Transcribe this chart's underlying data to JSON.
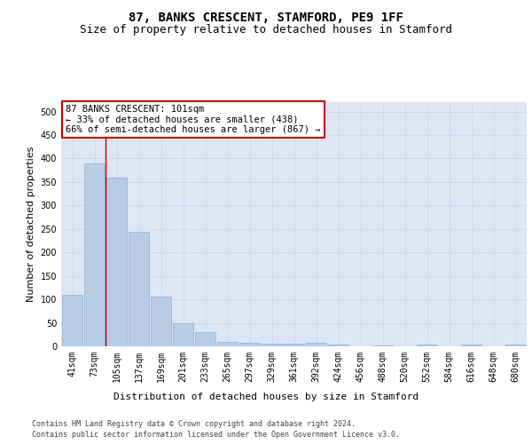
{
  "title": "87, BANKS CRESCENT, STAMFORD, PE9 1FF",
  "subtitle": "Size of property relative to detached houses in Stamford",
  "xlabel": "Distribution of detached houses by size in Stamford",
  "ylabel": "Number of detached properties",
  "categories": [
    "41sqm",
    "73sqm",
    "105sqm",
    "137sqm",
    "169sqm",
    "201sqm",
    "233sqm",
    "265sqm",
    "297sqm",
    "329sqm",
    "361sqm",
    "392sqm",
    "424sqm",
    "456sqm",
    "488sqm",
    "520sqm",
    "552sqm",
    "584sqm",
    "616sqm",
    "648sqm",
    "680sqm"
  ],
  "values": [
    110,
    390,
    360,
    243,
    105,
    50,
    30,
    10,
    8,
    5,
    5,
    8,
    3,
    0,
    2,
    0,
    3,
    0,
    4,
    0,
    3
  ],
  "bar_color": "#b8cce4",
  "bar_edge_color": "#8ab0d0",
  "vline_color": "#cc0000",
  "annotation_text": "87 BANKS CRESCENT: 101sqm\n← 33% of detached houses are smaller (438)\n66% of semi-detached houses are larger (867) →",
  "annotation_box_color": "#ffffff",
  "annotation_box_edge": "#cc0000",
  "ylim": [
    0,
    520
  ],
  "yticks": [
    0,
    50,
    100,
    150,
    200,
    250,
    300,
    350,
    400,
    450,
    500
  ],
  "grid_color": "#d0d8e8",
  "background_color": "#dce6f5",
  "footer_line1": "Contains HM Land Registry data © Crown copyright and database right 2024.",
  "footer_line2": "Contains public sector information licensed under the Open Government Licence v3.0.",
  "title_fontsize": 10,
  "subtitle_fontsize": 9,
  "axis_label_fontsize": 8,
  "tick_fontsize": 7,
  "annotation_fontsize": 7.5,
  "footer_fontsize": 6
}
